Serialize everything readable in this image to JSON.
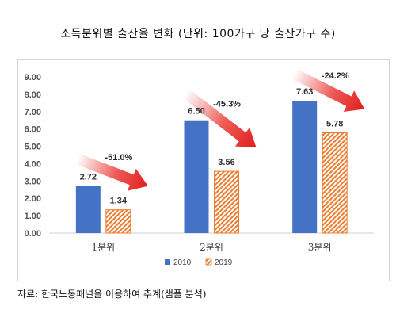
{
  "title": "소득분위별 출산율 변화 (단위: 100가구 당 출산가구 수)",
  "source": "자료: 한국노동패널을 이용하여 추계(샘플 분석)",
  "colors": {
    "s2010": "#4472C4",
    "s2019": "#ED7D31",
    "arrow": "#E8231F"
  },
  "chart_data": {
    "type": "bar",
    "title": "소득분위별 출산율 변화 (단위: 100가구 당 출산가구 수)",
    "categories": [
      "1분위",
      "2분위",
      "3분위"
    ],
    "series": [
      {
        "name": "2010",
        "values": [
          2.72,
          6.5,
          7.63
        ],
        "labels": [
          "2.72",
          "6.50",
          "7.63"
        ]
      },
      {
        "name": "2019",
        "values": [
          1.34,
          3.56,
          5.78
        ],
        "labels": [
          "1.34",
          "3.56",
          "5.78"
        ]
      }
    ],
    "ylim": [
      0,
      9
    ],
    "yticks": [
      "0.00",
      "1.00",
      "2.00",
      "3.00",
      "4.00",
      "5.00",
      "6.00",
      "7.00",
      "8.00",
      "9.00"
    ],
    "grid": false,
    "legend": "bottom",
    "annotations": [
      "-51.0%",
      "-45.3%",
      "-24.2%"
    ]
  }
}
